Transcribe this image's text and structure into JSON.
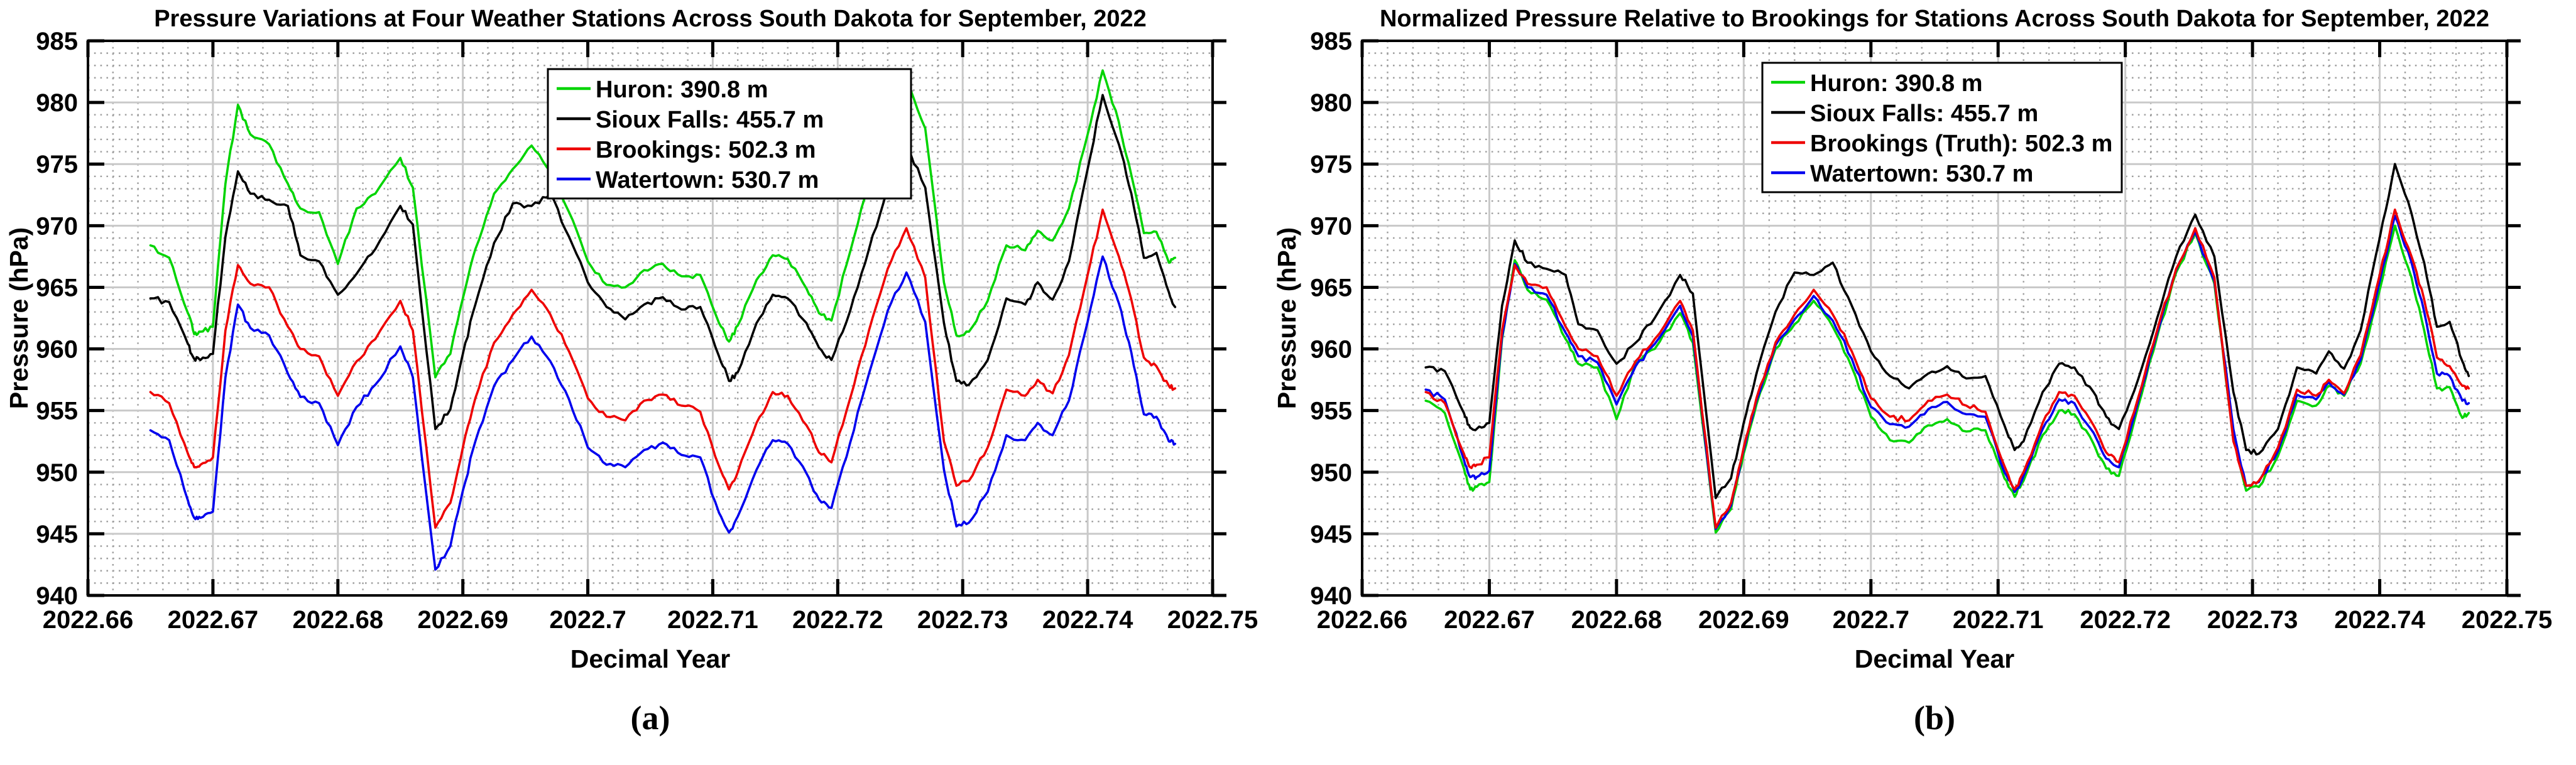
{
  "figure": {
    "background": "#ffffff",
    "captions": {
      "a": "(a)",
      "b": "(b)"
    }
  },
  "colors": {
    "huron": "#00d400",
    "sioux_falls": "#000000",
    "brookings": "#ee0000",
    "watertown": "#0000ee",
    "grid_major": "#c9c9c9",
    "grid_minor": "#9f9f9f",
    "axis": "#000000",
    "legend_bg": "#ffffff",
    "text": "#000000"
  },
  "chart_data": [
    {
      "type": "line",
      "panel": "a",
      "title": "Pressure Variations at Four Weather Stations Across South Dakota for September, 2022",
      "xlabel": "Decimal Year",
      "ylabel": "Pressure (hPa)",
      "xlim": [
        2022.66,
        2022.75
      ],
      "ylim": [
        940,
        985
      ],
      "x_major_step": 0.01,
      "x_minor_step": 0.002,
      "y_major_step": 5,
      "y_minor_step": 1,
      "grid": true,
      "legend_position": "upper center-right inside",
      "x_tick_labels": [
        "2022.66",
        "2022.67",
        "2022.68",
        "2022.69",
        "2022.7",
        "2022.71",
        "2022.72",
        "2022.73",
        "2022.74",
        "2022.75"
      ],
      "y_tick_labels": [
        "940",
        "945",
        "950",
        "955",
        "960",
        "965",
        "970",
        "975",
        "980",
        "985"
      ],
      "x": [
        2022.665,
        2022.6665,
        2022.668,
        2022.6685,
        2022.669,
        2022.67,
        2022.671,
        2022.672,
        2022.673,
        2022.6745,
        2022.676,
        2022.677,
        2022.6785,
        2022.68,
        2022.6815,
        2022.683,
        2022.685,
        2022.686,
        2022.6878,
        2022.689,
        2022.69,
        2022.691,
        2022.6925,
        2022.694,
        2022.6955,
        2022.697,
        2022.6985,
        2022.7,
        2022.7015,
        2022.703,
        2022.7045,
        2022.706,
        2022.7075,
        2022.709,
        2022.7105,
        2022.7113,
        2022.712,
        2022.7135,
        2022.7148,
        2022.716,
        2022.7175,
        2022.7185,
        2022.7195,
        2022.721,
        2022.7225,
        2022.724,
        2022.7255,
        2022.727,
        2022.7285,
        2022.7295,
        2022.7305,
        2022.732,
        2022.7335,
        2022.735,
        2022.736,
        2022.7372,
        2022.7385,
        2022.74,
        2022.7412,
        2022.7425,
        2022.7435,
        2022.7445,
        2022.7455,
        2022.7465,
        2022.747
      ],
      "series": [
        {
          "name": "huron",
          "label": "Huron: 390.8 m",
          "color_key": "huron",
          "z": 1,
          "y": [
            968.4,
            967.4,
            962.9,
            961.2,
            961.4,
            961.8,
            973.4,
            979.8,
            977.4,
            976.6,
            973.4,
            971.4,
            971.1,
            966.9,
            971.4,
            972.6,
            975.5,
            973.1,
            957.7,
            959.6,
            964.1,
            968.1,
            972.6,
            974.6,
            976.5,
            974.4,
            971.1,
            967.1,
            965.2,
            965.0,
            966.4,
            966.9,
            965.9,
            966.0,
            962.1,
            960.6,
            961.9,
            965.6,
            967.6,
            967.3,
            964.9,
            962.9,
            962.3,
            967.9,
            973.6,
            978.8,
            982.0,
            977.9,
            965.4,
            961.1,
            961.4,
            963.9,
            968.4,
            968.0,
            969.6,
            968.8,
            971.4,
            977.4,
            982.6,
            978.4,
            974.1,
            969.4,
            969.5,
            967.0,
            967.4
          ]
        },
        {
          "name": "sioux_falls",
          "label": "Sioux Falls: 455.7 m",
          "color_key": "sioux_falls",
          "z": 2,
          "y": [
            964.1,
            963.8,
            960.4,
            959.2,
            959.1,
            959.6,
            969.1,
            974.4,
            972.6,
            972.1,
            971.6,
            967.6,
            967.1,
            964.4,
            966.1,
            968.1,
            971.6,
            970.1,
            953.5,
            955.1,
            959.6,
            963.6,
            968.6,
            971.8,
            971.6,
            972.6,
            969.1,
            965.4,
            963.4,
            962.4,
            963.6,
            964.2,
            963.2,
            963.4,
            959.4,
            957.4,
            958.1,
            962.1,
            964.4,
            964.1,
            962.1,
            960.1,
            959.1,
            963.1,
            968.1,
            973.1,
            976.5,
            973.1,
            962.1,
            957.4,
            957.1,
            959.1,
            964.1,
            963.6,
            965.4,
            964.0,
            967.1,
            974.6,
            980.6,
            976.6,
            972.6,
            967.4,
            967.8,
            964.6,
            963.4
          ]
        },
        {
          "name": "brookings",
          "label": "Brookings: 502.3 m",
          "color_key": "brookings",
          "z": 4,
          "y": [
            956.5,
            955.6,
            951.5,
            950.4,
            950.6,
            951.2,
            961.5,
            966.8,
            965.3,
            965.0,
            961.8,
            960.0,
            959.4,
            956.2,
            959.0,
            960.8,
            963.9,
            961.5,
            945.5,
            947.5,
            952.0,
            956.0,
            960.5,
            962.8,
            964.8,
            962.8,
            959.8,
            956.0,
            954.5,
            954.2,
            955.8,
            956.3,
            955.4,
            954.9,
            950.5,
            948.6,
            950.0,
            954.0,
            956.5,
            956.2,
            953.8,
            951.6,
            950.8,
            956.0,
            961.5,
            966.5,
            969.8,
            965.8,
            952.5,
            948.9,
            949.3,
            952.0,
            956.7,
            956.2,
            957.5,
            956.4,
            959.5,
            966.0,
            971.3,
            967.5,
            964.0,
            959.3,
            958.6,
            957.0,
            956.8
          ]
        },
        {
          "name": "watertown",
          "label": "Watertown: 530.7 m",
          "color_key": "watertown",
          "z": 3,
          "y": [
            953.4,
            952.6,
            947.7,
            946.3,
            946.3,
            946.8,
            957.7,
            963.6,
            961.7,
            961.1,
            958.0,
            956.1,
            955.6,
            952.2,
            955.3,
            957.1,
            960.2,
            957.7,
            942.1,
            944.0,
            948.5,
            952.5,
            957.0,
            959.1,
            961.0,
            959.0,
            955.9,
            952.0,
            950.6,
            950.4,
            951.8,
            952.4,
            951.4,
            951.2,
            946.7,
            945.1,
            946.4,
            950.2,
            952.6,
            952.3,
            949.9,
            947.8,
            947.1,
            952.4,
            958.0,
            963.1,
            966.2,
            962.2,
            950.2,
            945.6,
            945.9,
            948.4,
            953.0,
            952.6,
            954.0,
            953.0,
            955.8,
            962.2,
            967.5,
            963.7,
            959.7,
            954.7,
            954.5,
            952.5,
            952.3
          ]
        }
      ]
    },
    {
      "type": "line",
      "panel": "b",
      "title": "Normalized Pressure Relative to Brookings for Stations Across South Dakota for September, 2022",
      "xlabel": "Decimal Year",
      "ylabel": "Pressure (hPa)",
      "xlim": [
        2022.66,
        2022.75
      ],
      "ylim": [
        940,
        985
      ],
      "x_major_step": 0.01,
      "x_minor_step": 0.002,
      "y_major_step": 5,
      "y_minor_step": 1,
      "grid": true,
      "legend_position": "upper center inside",
      "x_tick_labels": [
        "2022.66",
        "2022.67",
        "2022.68",
        "2022.69",
        "2022.7",
        "2022.71",
        "2022.72",
        "2022.73",
        "2022.74",
        "2022.75"
      ],
      "y_tick_labels": [
        "940",
        "945",
        "950",
        "955",
        "960",
        "965",
        "970",
        "975",
        "980",
        "985"
      ],
      "x": [
        2022.665,
        2022.6665,
        2022.668,
        2022.6685,
        2022.669,
        2022.67,
        2022.671,
        2022.672,
        2022.673,
        2022.6745,
        2022.676,
        2022.677,
        2022.6785,
        2022.68,
        2022.6815,
        2022.683,
        2022.685,
        2022.686,
        2022.6878,
        2022.689,
        2022.69,
        2022.691,
        2022.6925,
        2022.694,
        2022.6955,
        2022.697,
        2022.6985,
        2022.7,
        2022.7015,
        2022.703,
        2022.7045,
        2022.706,
        2022.7075,
        2022.709,
        2022.7105,
        2022.7113,
        2022.712,
        2022.7135,
        2022.7148,
        2022.716,
        2022.7175,
        2022.7185,
        2022.7195,
        2022.721,
        2022.7225,
        2022.724,
        2022.7255,
        2022.727,
        2022.7285,
        2022.7295,
        2022.7305,
        2022.732,
        2022.7335,
        2022.735,
        2022.736,
        2022.7372,
        2022.7385,
        2022.74,
        2022.7412,
        2022.7425,
        2022.7435,
        2022.7445,
        2022.7455,
        2022.7465,
        2022.747
      ],
      "series": [
        {
          "name": "huron",
          "label": "Huron: 390.8 m",
          "color_key": "huron",
          "z": 1,
          "y": [
            955.8,
            954.8,
            950.3,
            948.6,
            948.8,
            949.2,
            960.8,
            967.2,
            964.8,
            964.0,
            960.8,
            958.8,
            958.5,
            954.3,
            958.8,
            960.0,
            962.9,
            960.5,
            945.1,
            947.0,
            951.5,
            955.5,
            960.0,
            962.0,
            963.9,
            961.8,
            958.5,
            954.5,
            952.6,
            952.4,
            953.8,
            954.3,
            953.3,
            953.4,
            949.5,
            948.0,
            949.3,
            953.0,
            955.0,
            954.7,
            952.3,
            950.3,
            949.7,
            955.3,
            961.0,
            966.2,
            969.4,
            965.3,
            952.8,
            948.5,
            948.8,
            951.3,
            955.8,
            955.4,
            957.0,
            956.2,
            958.8,
            964.8,
            970.0,
            965.8,
            961.5,
            956.8,
            956.9,
            954.4,
            954.8
          ]
        },
        {
          "name": "sioux_falls",
          "label": "Sioux Falls: 455.7 m",
          "color_key": "sioux_falls",
          "z": 2,
          "y": [
            958.5,
            958.2,
            954.8,
            953.6,
            953.5,
            954.0,
            963.5,
            968.8,
            967.0,
            966.5,
            966.0,
            962.0,
            961.5,
            958.8,
            960.5,
            962.5,
            966.0,
            964.5,
            947.9,
            949.5,
            954.0,
            958.0,
            963.0,
            966.2,
            966.0,
            967.0,
            963.5,
            959.8,
            957.8,
            956.8,
            958.0,
            958.6,
            957.6,
            957.8,
            953.8,
            951.8,
            952.5,
            956.5,
            958.8,
            958.5,
            956.5,
            954.5,
            953.5,
            957.5,
            962.5,
            967.5,
            970.9,
            967.5,
            956.5,
            951.8,
            951.5,
            953.5,
            958.5,
            958.0,
            959.8,
            958.4,
            961.5,
            969.0,
            975.0,
            971.0,
            967.0,
            961.8,
            962.2,
            959.0,
            957.8
          ]
        },
        {
          "name": "brookings",
          "label": "Brookings (Truth): 502.3 m",
          "color_key": "brookings",
          "z": 4,
          "y": [
            956.5,
            955.6,
            951.5,
            950.4,
            950.6,
            951.2,
            961.5,
            966.8,
            965.3,
            965.0,
            961.8,
            960.0,
            959.4,
            956.2,
            959.0,
            960.8,
            963.9,
            961.5,
            945.5,
            947.5,
            952.0,
            956.0,
            960.5,
            962.8,
            964.8,
            962.8,
            959.8,
            956.0,
            954.5,
            954.2,
            955.8,
            956.3,
            955.4,
            954.9,
            950.5,
            948.6,
            950.0,
            954.0,
            956.5,
            956.2,
            953.8,
            951.6,
            950.8,
            956.0,
            961.5,
            966.5,
            969.8,
            965.8,
            952.5,
            948.9,
            949.3,
            952.0,
            956.7,
            956.2,
            957.5,
            956.4,
            959.5,
            966.0,
            971.3,
            967.5,
            964.0,
            959.3,
            958.6,
            957.0,
            956.8
          ]
        },
        {
          "name": "watertown",
          "label": "Watertown: 530.7 m",
          "color_key": "watertown",
          "z": 3,
          "y": [
            956.7,
            955.9,
            951.0,
            949.6,
            949.6,
            950.1,
            961.0,
            966.9,
            965.0,
            964.4,
            961.3,
            959.4,
            958.9,
            955.5,
            958.6,
            960.4,
            963.5,
            961.0,
            945.4,
            947.3,
            951.8,
            955.8,
            960.3,
            962.4,
            964.3,
            962.3,
            959.2,
            955.3,
            953.9,
            953.7,
            955.1,
            955.7,
            954.7,
            954.5,
            950.0,
            948.4,
            949.7,
            953.5,
            955.9,
            955.6,
            953.2,
            951.1,
            950.4,
            955.7,
            961.3,
            966.4,
            969.5,
            965.5,
            953.5,
            948.9,
            949.2,
            951.7,
            956.3,
            955.9,
            957.3,
            956.3,
            959.1,
            965.5,
            970.8,
            967.0,
            963.0,
            958.0,
            957.8,
            955.8,
            955.6
          ]
        }
      ]
    }
  ]
}
